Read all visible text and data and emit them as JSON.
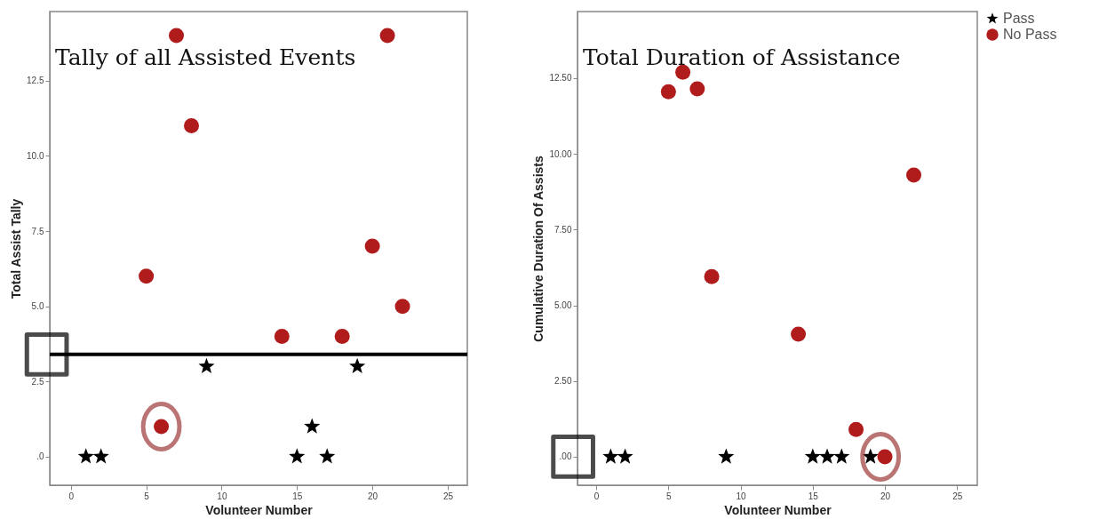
{
  "chart_data": [
    {
      "type": "scatter",
      "title": "Tally of all Assisted Events",
      "xlabel": "Volunteer Number",
      "ylabel": "Total Assist Tally",
      "xlim": [
        -1.4,
        26.3
      ],
      "xticks": [
        0,
        5,
        10,
        15,
        20,
        25
      ],
      "ylim": [
        -0.95,
        14.8
      ],
      "yticks": [
        {
          "value": 0,
          "label": ".0"
        },
        2.5,
        {
          "value": 5,
          "label": "5.0"
        },
        7.5,
        {
          "value": 10,
          "label": "10.0"
        },
        12.5
      ],
      "grid": false,
      "legend": "top right",
      "ref_lines": [
        {
          "axis": "y",
          "value": 3.4,
          "color": "#000000"
        }
      ],
      "series": [
        {
          "name": "Pass",
          "color": "#000000",
          "marker": "star",
          "x": [
            1,
            2,
            9,
            15,
            16,
            17,
            19
          ],
          "values": [
            0,
            0,
            3,
            0,
            1,
            0,
            3
          ]
        },
        {
          "name": "No Pass",
          "color": "#b01c1c",
          "marker": "circle",
          "x": [
            5,
            6,
            7,
            8,
            14,
            18,
            20,
            21,
            22
          ],
          "values": [
            6,
            1,
            14,
            11,
            4,
            4,
            7,
            14,
            5
          ]
        }
      ]
    },
    {
      "type": "scatter",
      "title": "Total Duration of Assistance",
      "xlabel": "Volunteer Number",
      "ylabel": "Cumulative Duration Of Assists",
      "xlim": [
        -1.3,
        26.4
      ],
      "xticks": [
        0,
        5,
        10,
        15,
        20,
        25
      ],
      "ylim": [
        -0.94,
        14.7
      ],
      "yticks": [
        {
          "value": 0,
          "label": ".00"
        },
        {
          "value": 2.5,
          "label": "2.50"
        },
        {
          "value": 5,
          "label": "5.00"
        },
        {
          "value": 7.5,
          "label": "7.50"
        },
        {
          "value": 10,
          "label": "10.00"
        },
        {
          "value": 12.5,
          "label": "12.50"
        }
      ],
      "grid": false,
      "legend": "top right",
      "series": [
        {
          "name": "Pass",
          "color": "#000000",
          "marker": "star",
          "x": [
            1,
            2,
            9,
            15,
            16,
            17,
            19
          ],
          "values": [
            0,
            0,
            0,
            0,
            0,
            0,
            0
          ]
        },
        {
          "name": "No Pass",
          "color": "#b01c1c",
          "marker": "circle",
          "x": [
            5,
            6,
            7,
            8,
            14,
            18,
            20,
            22
          ],
          "values": [
            12.05,
            12.7,
            12.15,
            5.95,
            4.05,
            0.9,
            0,
            9.3
          ]
        }
      ]
    }
  ]
}
